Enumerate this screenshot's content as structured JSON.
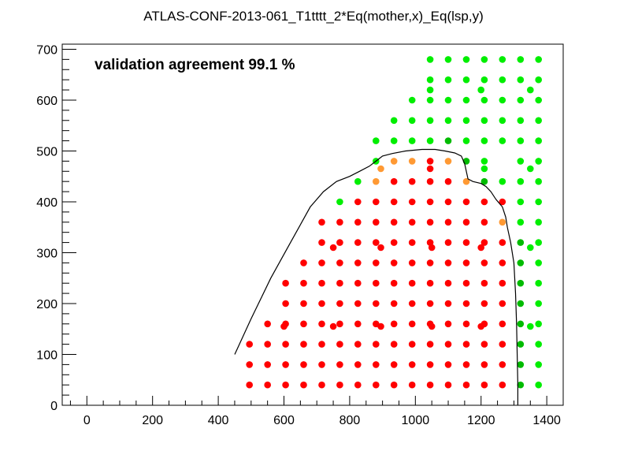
{
  "chart_data": {
    "type": "scatter",
    "title": "ATLAS-CONF-2013-061_T1tttt_2*Eq(mother,x)_Eq(lsp,y)",
    "annotation": "validation agreement 99.1 %",
    "xlim": [
      -75,
      1450
    ],
    "ylim": [
      0,
      710
    ],
    "x_ticks": [
      0,
      200,
      400,
      600,
      800,
      1000,
      1200,
      1400
    ],
    "y_ticks": [
      0,
      100,
      200,
      300,
      400,
      500,
      600,
      700
    ],
    "grid": false,
    "colors": {
      "red": "#ff0000",
      "orange": "#ff9933",
      "green": "#00ee00",
      "darkgreen": "#00bb00",
      "contour": "#000000"
    },
    "series": [
      {
        "color": "red",
        "points": [
          [
            495,
            40
          ],
          [
            550,
            40
          ],
          [
            605,
            40
          ],
          [
            660,
            40
          ],
          [
            715,
            40
          ],
          [
            770,
            40
          ],
          [
            825,
            40
          ],
          [
            880,
            40
          ],
          [
            935,
            40
          ],
          [
            990,
            40
          ],
          [
            1045,
            40
          ],
          [
            1100,
            40
          ],
          [
            1155,
            40
          ],
          [
            1210,
            40
          ],
          [
            1265,
            40
          ],
          [
            495,
            80
          ],
          [
            550,
            80
          ],
          [
            605,
            80
          ],
          [
            660,
            80
          ],
          [
            715,
            80
          ],
          [
            770,
            80
          ],
          [
            825,
            80
          ],
          [
            880,
            80
          ],
          [
            935,
            80
          ],
          [
            990,
            80
          ],
          [
            1045,
            80
          ],
          [
            1100,
            80
          ],
          [
            1155,
            80
          ],
          [
            1210,
            80
          ],
          [
            1265,
            80
          ],
          [
            495,
            120
          ],
          [
            550,
            120
          ],
          [
            605,
            120
          ],
          [
            660,
            120
          ],
          [
            715,
            120
          ],
          [
            770,
            120
          ],
          [
            825,
            120
          ],
          [
            880,
            120
          ],
          [
            935,
            120
          ],
          [
            990,
            120
          ],
          [
            1045,
            120
          ],
          [
            1100,
            120
          ],
          [
            1155,
            120
          ],
          [
            1210,
            120
          ],
          [
            1265,
            120
          ],
          [
            550,
            160
          ],
          [
            605,
            160
          ],
          [
            660,
            160
          ],
          [
            715,
            160
          ],
          [
            770,
            160
          ],
          [
            825,
            160
          ],
          [
            880,
            160
          ],
          [
            935,
            160
          ],
          [
            990,
            160
          ],
          [
            1045,
            160
          ],
          [
            1100,
            160
          ],
          [
            1155,
            160
          ],
          [
            1210,
            160
          ],
          [
            1265,
            160
          ],
          [
            600,
            155
          ],
          [
            750,
            155
          ],
          [
            895,
            155
          ],
          [
            1050,
            155
          ],
          [
            1200,
            155
          ],
          [
            605,
            200
          ],
          [
            660,
            200
          ],
          [
            715,
            200
          ],
          [
            770,
            200
          ],
          [
            825,
            200
          ],
          [
            880,
            200
          ],
          [
            935,
            200
          ],
          [
            990,
            200
          ],
          [
            1045,
            200
          ],
          [
            1100,
            200
          ],
          [
            1155,
            200
          ],
          [
            1210,
            200
          ],
          [
            1265,
            200
          ],
          [
            605,
            240
          ],
          [
            660,
            240
          ],
          [
            715,
            240
          ],
          [
            770,
            240
          ],
          [
            825,
            240
          ],
          [
            880,
            240
          ],
          [
            935,
            240
          ],
          [
            990,
            240
          ],
          [
            1045,
            240
          ],
          [
            1100,
            240
          ],
          [
            1155,
            240
          ],
          [
            1210,
            240
          ],
          [
            1265,
            240
          ],
          [
            660,
            280
          ],
          [
            715,
            280
          ],
          [
            770,
            280
          ],
          [
            825,
            280
          ],
          [
            880,
            280
          ],
          [
            935,
            280
          ],
          [
            990,
            280
          ],
          [
            1045,
            280
          ],
          [
            1100,
            280
          ],
          [
            1155,
            280
          ],
          [
            1210,
            280
          ],
          [
            1265,
            280
          ],
          [
            715,
            320
          ],
          [
            770,
            320
          ],
          [
            825,
            320
          ],
          [
            880,
            320
          ],
          [
            935,
            320
          ],
          [
            990,
            320
          ],
          [
            1045,
            320
          ],
          [
            1100,
            320
          ],
          [
            1155,
            320
          ],
          [
            1210,
            320
          ],
          [
            1265,
            320
          ],
          [
            750,
            310
          ],
          [
            895,
            310
          ],
          [
            1050,
            310
          ],
          [
            1200,
            310
          ],
          [
            715,
            360
          ],
          [
            770,
            360
          ],
          [
            825,
            360
          ],
          [
            880,
            360
          ],
          [
            935,
            360
          ],
          [
            990,
            360
          ],
          [
            1045,
            360
          ],
          [
            1100,
            360
          ],
          [
            1155,
            360
          ],
          [
            1210,
            360
          ],
          [
            825,
            400
          ],
          [
            880,
            400
          ],
          [
            935,
            400
          ],
          [
            990,
            400
          ],
          [
            1045,
            400
          ],
          [
            1100,
            400
          ],
          [
            1155,
            400
          ],
          [
            1210,
            400
          ],
          [
            1265,
            400
          ],
          [
            935,
            440
          ],
          [
            990,
            440
          ],
          [
            1045,
            440
          ],
          [
            1100,
            440
          ],
          [
            1045,
            465
          ],
          [
            1045,
            480
          ]
        ]
      },
      {
        "color": "orange",
        "points": [
          [
            880,
            440
          ],
          [
            895,
            465
          ],
          [
            935,
            480
          ],
          [
            990,
            480
          ],
          [
            1100,
            480
          ],
          [
            1155,
            440
          ],
          [
            1265,
            360
          ]
        ]
      },
      {
        "color": "green",
        "points": [
          [
            825,
            440
          ],
          [
            770,
            400
          ],
          [
            880,
            520
          ],
          [
            935,
            520
          ],
          [
            990,
            520
          ],
          [
            1045,
            520
          ],
          [
            1155,
            520
          ],
          [
            1210,
            520
          ],
          [
            1265,
            520
          ],
          [
            1320,
            520
          ],
          [
            1375,
            520
          ],
          [
            880,
            480
          ],
          [
            1210,
            480
          ],
          [
            1320,
            480
          ],
          [
            1375,
            480
          ],
          [
            1210,
            465
          ],
          [
            1350,
            465
          ],
          [
            1265,
            440
          ],
          [
            1320,
            440
          ],
          [
            1375,
            440
          ],
          [
            1320,
            400
          ],
          [
            1375,
            400
          ],
          [
            1320,
            360
          ],
          [
            1375,
            360
          ],
          [
            1375,
            320
          ],
          [
            1350,
            310
          ],
          [
            1375,
            280
          ],
          [
            1375,
            240
          ],
          [
            1375,
            200
          ],
          [
            1375,
            160
          ],
          [
            1350,
            155
          ],
          [
            1375,
            120
          ],
          [
            1375,
            80
          ],
          [
            1375,
            40
          ],
          [
            935,
            560
          ],
          [
            990,
            560
          ],
          [
            1045,
            560
          ],
          [
            1100,
            560
          ],
          [
            1155,
            560
          ],
          [
            1210,
            560
          ],
          [
            1265,
            560
          ],
          [
            1320,
            560
          ],
          [
            1375,
            560
          ],
          [
            990,
            600
          ],
          [
            1045,
            600
          ],
          [
            1100,
            600
          ],
          [
            1155,
            600
          ],
          [
            1210,
            600
          ],
          [
            1265,
            600
          ],
          [
            1320,
            600
          ],
          [
            1375,
            600
          ],
          [
            1045,
            620
          ],
          [
            1200,
            620
          ],
          [
            1350,
            620
          ],
          [
            1045,
            640
          ],
          [
            1100,
            640
          ],
          [
            1155,
            640
          ],
          [
            1210,
            640
          ],
          [
            1265,
            640
          ],
          [
            1320,
            640
          ],
          [
            1375,
            640
          ],
          [
            1045,
            680
          ],
          [
            1100,
            680
          ],
          [
            1155,
            680
          ],
          [
            1210,
            680
          ],
          [
            1265,
            680
          ],
          [
            1320,
            680
          ],
          [
            1375,
            680
          ]
        ]
      },
      {
        "color": "darkgreen",
        "points": [
          [
            1100,
            520
          ],
          [
            1155,
            480
          ],
          [
            1210,
            440
          ],
          [
            1320,
            320
          ],
          [
            1320,
            280
          ],
          [
            1320,
            240
          ],
          [
            1320,
            200
          ],
          [
            1320,
            160
          ],
          [
            1320,
            120
          ],
          [
            1320,
            80
          ],
          [
            1320,
            40
          ]
        ]
      }
    ],
    "contour": [
      [
        450,
        100
      ],
      [
        500,
        170
      ],
      [
        560,
        250
      ],
      [
        620,
        320
      ],
      [
        680,
        390
      ],
      [
        720,
        420
      ],
      [
        760,
        440
      ],
      [
        800,
        450
      ],
      [
        830,
        460
      ],
      [
        860,
        470
      ],
      [
        880,
        480
      ],
      [
        900,
        490
      ],
      [
        930,
        495
      ],
      [
        970,
        500
      ],
      [
        1020,
        503
      ],
      [
        1060,
        503
      ],
      [
        1090,
        500
      ],
      [
        1120,
        496
      ],
      [
        1140,
        490
      ],
      [
        1150,
        475
      ],
      [
        1160,
        445
      ],
      [
        1175,
        440
      ],
      [
        1200,
        436
      ],
      [
        1215,
        430
      ],
      [
        1230,
        420
      ],
      [
        1245,
        405
      ],
      [
        1265,
        390
      ],
      [
        1275,
        370
      ],
      [
        1280,
        350
      ],
      [
        1290,
        320
      ],
      [
        1300,
        280
      ],
      [
        1305,
        220
      ],
      [
        1308,
        160
      ],
      [
        1310,
        100
      ],
      [
        1312,
        40
      ],
      [
        1312,
        0
      ]
    ]
  }
}
